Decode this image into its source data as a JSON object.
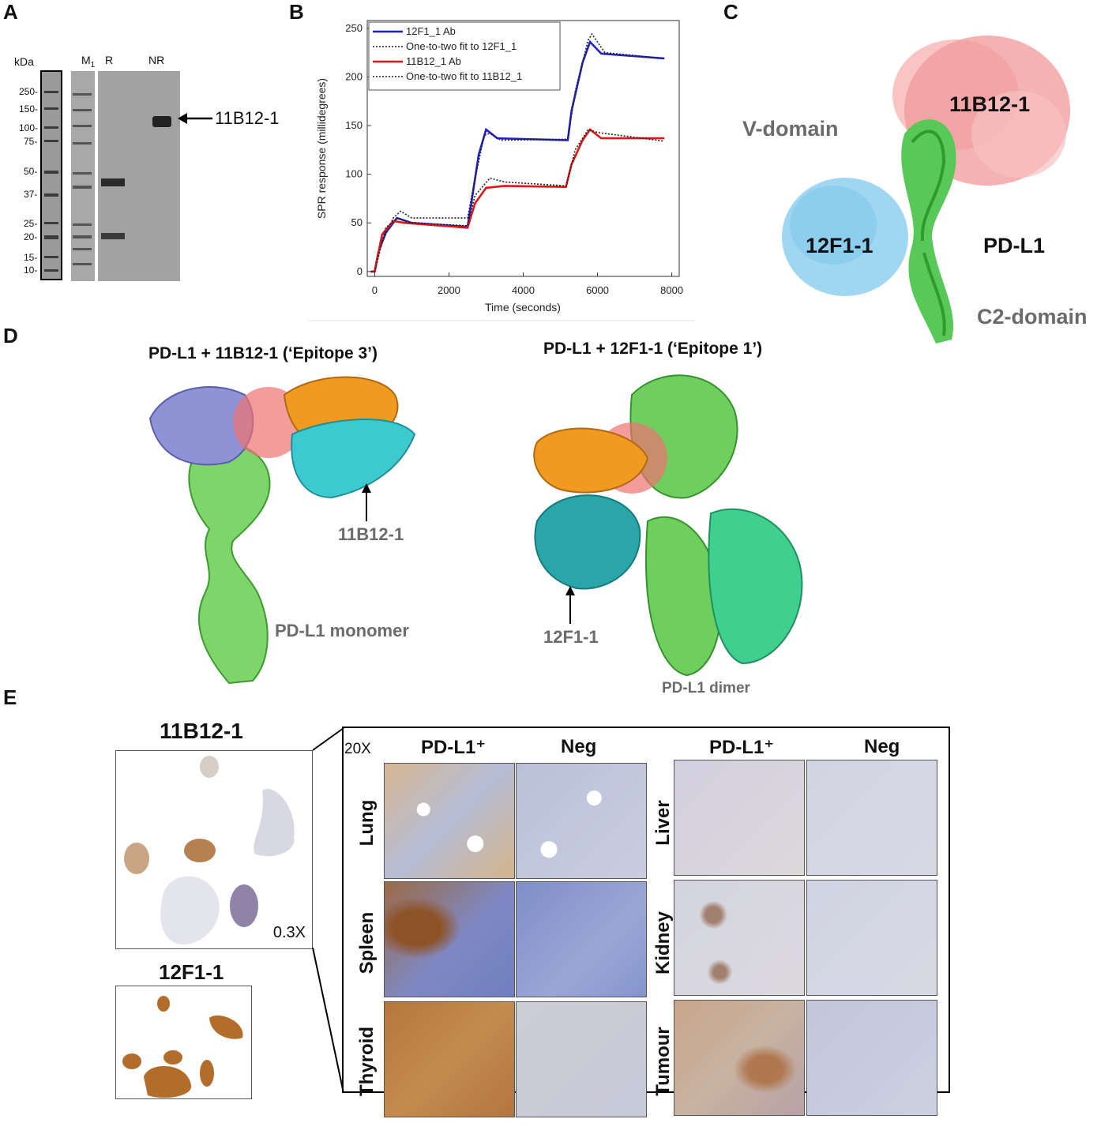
{
  "panels": {
    "A": "A",
    "B": "B",
    "C": "C",
    "D": "D",
    "E": "E"
  },
  "panel_a": {
    "unit_label": "kDa",
    "ladder_marks": [
      "250-",
      "150-",
      "100-",
      "75-",
      "50-",
      "37-",
      "25-",
      "20-",
      "15-",
      "10-"
    ],
    "lane_labels": {
      "m": "M",
      "m_sub": "1",
      "r": "R",
      "nr": "NR"
    },
    "arrow_label": "11B12-1"
  },
  "chart_data": {
    "type": "line",
    "xlabel": "Time (seconds)",
    "ylabel": "SPR response (millidegrees)",
    "xlim": [
      -200,
      8200
    ],
    "ylim": [
      -5,
      258
    ],
    "x_ticks": [
      "0",
      "2000",
      "4000",
      "6000",
      "8000"
    ],
    "y_ticks": [
      "0",
      "50",
      "100",
      "150",
      "200",
      "250"
    ],
    "legend_position": "top-left",
    "series": [
      {
        "name": "12F1_1 Ab",
        "color": "#1f1fd0",
        "style": "solid",
        "points": [
          [
            -100,
            0
          ],
          [
            0,
            0
          ],
          [
            100,
            20
          ],
          [
            300,
            40
          ],
          [
            600,
            55
          ],
          [
            1000,
            50
          ],
          [
            2500,
            46
          ],
          [
            2600,
            70
          ],
          [
            2800,
            120
          ],
          [
            3000,
            146
          ],
          [
            3300,
            137
          ],
          [
            5200,
            135
          ],
          [
            5300,
            165
          ],
          [
            5600,
            215
          ],
          [
            5800,
            236
          ],
          [
            6100,
            224
          ],
          [
            7800,
            219
          ]
        ]
      },
      {
        "name": "One-to-two fit to 12F1_1",
        "color": "#222222",
        "style": "dotted",
        "points": [
          [
            -100,
            0
          ],
          [
            0,
            0
          ],
          [
            200,
            30
          ],
          [
            500,
            55
          ],
          [
            700,
            62
          ],
          [
            1000,
            55
          ],
          [
            2500,
            55
          ],
          [
            2700,
            95
          ],
          [
            2950,
            140
          ],
          [
            3100,
            142
          ],
          [
            3400,
            135
          ],
          [
            5200,
            136
          ],
          [
            5400,
            185
          ],
          [
            5750,
            238
          ],
          [
            5850,
            244
          ],
          [
            6200,
            225
          ],
          [
            7800,
            219
          ]
        ]
      },
      {
        "name": "11B12_1 Ab",
        "color": "#e01515",
        "style": "solid",
        "points": [
          [
            -100,
            0
          ],
          [
            0,
            0
          ],
          [
            200,
            38
          ],
          [
            500,
            52
          ],
          [
            800,
            50
          ],
          [
            2500,
            45
          ],
          [
            2700,
            70
          ],
          [
            3000,
            86
          ],
          [
            3500,
            88
          ],
          [
            5150,
            87
          ],
          [
            5300,
            110
          ],
          [
            5600,
            135
          ],
          [
            5800,
            146
          ],
          [
            6100,
            137
          ],
          [
            7800,
            137
          ]
        ]
      },
      {
        "name": "One-to-two fit to 11B12_1",
        "color": "#222222",
        "style": "dotted",
        "points": [
          [
            -100,
            0
          ],
          [
            0,
            0
          ],
          [
            300,
            45
          ],
          [
            600,
            55
          ],
          [
            1000,
            50
          ],
          [
            2500,
            47
          ],
          [
            2700,
            78
          ],
          [
            3100,
            96
          ],
          [
            3500,
            92
          ],
          [
            5150,
            88
          ],
          [
            5400,
            125
          ],
          [
            5750,
            146
          ],
          [
            6000,
            143
          ],
          [
            7800,
            134
          ]
        ]
      }
    ]
  },
  "panel_c": {
    "v_domain": "V-domain",
    "ab_top": "11B12-1",
    "ab_left": "12F1-1",
    "pdl1": "PD-L1",
    "c2_domain": "C2-domain"
  },
  "panel_d": {
    "left_title": "PD-L1 + 11B12-1 (‘Epitope 3’)",
    "right_title": "PD-L1 + 12F1-1 (‘Epitope 1’)",
    "left_arrow_label": "11B12-1",
    "left_caption": "PD-L1 monomer",
    "right_arrow_label": "12F1-1",
    "right_caption": "PD-L1 dimer"
  },
  "panel_e": {
    "ab_top": "11B12-1",
    "ab_bottom": "12F1-1",
    "zoom_whole": "0.3X",
    "zoom_tiles": "20X",
    "col_pos": "PD-L1⁺",
    "col_neg": "Neg",
    "left_rows": [
      "Lung",
      "Spleen",
      "Thyroid"
    ],
    "right_rows": [
      "Liver",
      "Kidney",
      "Tumour"
    ]
  }
}
